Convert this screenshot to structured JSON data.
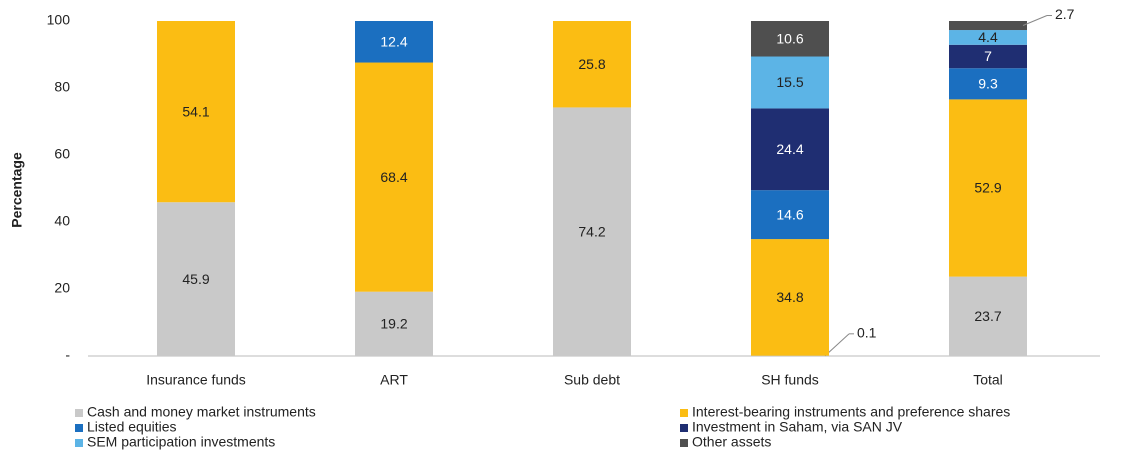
{
  "chart_data": {
    "type": "stacked_bar",
    "y_label": "Percentage",
    "categories": [
      "Insurance funds",
      "ART",
      "Sub debt",
      "SH funds",
      "Total"
    ],
    "series": [
      {
        "name": "Cash and money market instruments",
        "color": "#c9c9c9",
        "values": [
          45.9,
          19.2,
          74.2,
          0.1,
          23.7
        ]
      },
      {
        "name": "Interest-bearing instruments and preference shares",
        "color": "#fbbd13",
        "values": [
          54.1,
          68.4,
          25.8,
          34.8,
          52.9
        ]
      },
      {
        "name": "Listed equities",
        "color": "#1b6fc0",
        "values": [
          null,
          12.4,
          null,
          14.6,
          9.3
        ]
      },
      {
        "name": "Investment in Saham, via SAN JV",
        "color": "#1f2e72",
        "values": [
          null,
          null,
          null,
          24.4,
          7.0
        ]
      },
      {
        "name": "SEM participation investments",
        "color": "#5cb4e6",
        "values": [
          null,
          null,
          null,
          15.5,
          4.4
        ]
      },
      {
        "name": "Other assets",
        "color": "#4f4f4f",
        "values": [
          null,
          null,
          null,
          10.6,
          2.7
        ]
      }
    ],
    "ylim": [
      0,
      100
    ],
    "yticks": [
      {
        "value": 0,
        "label": "-"
      },
      20,
      40,
      60,
      80,
      100
    ],
    "grid": false
  }
}
